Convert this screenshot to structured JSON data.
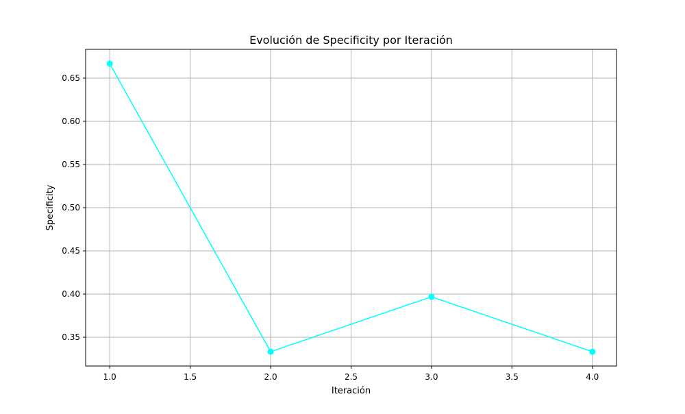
{
  "chart_data": {
    "type": "line",
    "title": "Evolución de Specificity por Iteración",
    "xlabel": "Iteración",
    "ylabel": "Specificity",
    "xlim": [
      0.85,
      4.15
    ],
    "ylim": [
      0.3167,
      0.6833
    ],
    "x_ticks": [
      1.0,
      1.5,
      2.0,
      2.5,
      3.0,
      3.5,
      4.0
    ],
    "x_tick_labels": [
      "1.0",
      "1.5",
      "2.0",
      "2.5",
      "3.0",
      "3.5",
      "4.0"
    ],
    "y_ticks": [
      0.35,
      0.4,
      0.45,
      0.5,
      0.55,
      0.6,
      0.65
    ],
    "y_tick_labels": [
      "0.35",
      "0.40",
      "0.45",
      "0.50",
      "0.55",
      "0.60",
      "0.65"
    ],
    "grid": true,
    "legend": "none",
    "series": [
      {
        "color": "#00ffff",
        "marker": "circle",
        "x": [
          1,
          2,
          3,
          4
        ],
        "y": [
          0.6667,
          0.3333,
          0.3968,
          0.3333
        ]
      }
    ]
  }
}
